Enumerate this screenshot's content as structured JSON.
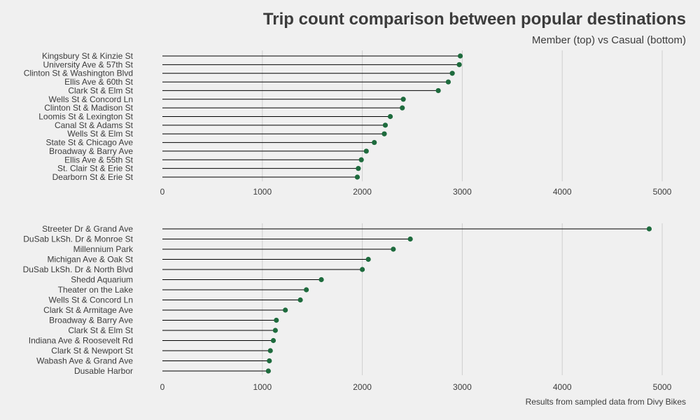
{
  "title": "Trip count comparison between popular destinations",
  "subtitle": "Member (top) vs Casual (bottom)",
  "caption": "Results from sampled data from Divy Bikes",
  "colors": {
    "point": "#1e6b3d",
    "line": "#000000",
    "grid": "#cfcfcf",
    "background": "#f0f0f0"
  },
  "chart_data": [
    {
      "type": "lollipop",
      "name": "",
      "xlim": [
        0,
        5000
      ],
      "xticks": [
        0,
        1000,
        2000,
        3000,
        4000,
        5000
      ],
      "grid": "vertical",
      "categories": [
        "Kingsbury St & Kinzie St",
        "University Ave & 57th St",
        "Clinton St & Washington Blvd",
        "Ellis Ave & 60th St",
        "Clark St & Elm St",
        "Wells St & Concord Ln",
        "Clinton St & Madison St",
        "Loomis St & Lexington St",
        "Canal St & Adams St",
        "Wells St & Elm St",
        "State St & Chicago Ave",
        "Broadway & Barry Ave",
        "Ellis Ave & 55th St",
        "St. Clair St & Erie St",
        "Dearborn St & Erie St"
      ],
      "values": [
        2980,
        2970,
        2900,
        2860,
        2760,
        2410,
        2400,
        2280,
        2230,
        2220,
        2120,
        2040,
        1990,
        1960,
        1950
      ]
    },
    {
      "type": "lollipop",
      "name": "",
      "xlim": [
        0,
        5000
      ],
      "xticks": [
        0,
        1000,
        2000,
        3000,
        4000,
        5000
      ],
      "grid": "vertical",
      "categories": [
        "Streeter Dr & Grand Ave",
        "DuSab LkSh. Dr & Monroe St",
        "Millennium Park",
        "Michigan Ave & Oak St",
        "DuSab LkSh. Dr & North Blvd",
        "Shedd Aquarium",
        "Theater on the Lake",
        "Wells St & Concord Ln",
        "Clark St & Armitage Ave",
        "Broadway & Barry Ave",
        "Clark St & Elm St",
        "Indiana Ave & Roosevelt Rd",
        "Clark St & Newport St",
        "Wabash Ave & Grand Ave",
        "Dusable Harbor"
      ],
      "values": [
        4870,
        2480,
        2310,
        2060,
        2000,
        1590,
        1440,
        1380,
        1230,
        1140,
        1130,
        1110,
        1080,
        1070,
        1060
      ]
    }
  ]
}
